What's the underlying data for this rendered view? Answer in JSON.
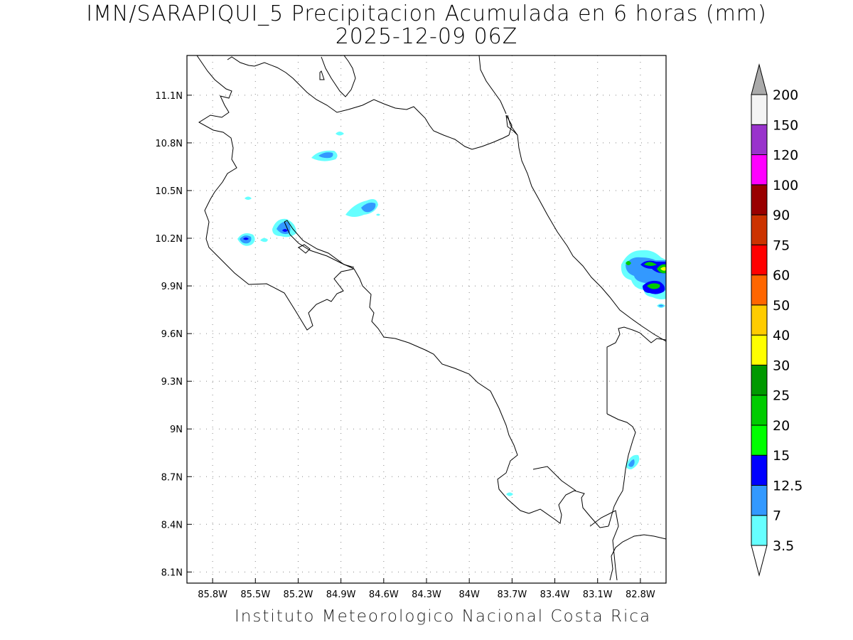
{
  "title": "IMN/SARAPIQUI_5 Precipitacion Acumulada en 6 horas (mm)",
  "subtitle": "2025-12-09 06Z",
  "footer": "Instituto Meteorologico Nacional Costa Rica",
  "map": {
    "lon_range": [
      -85.98,
      -82.62
    ],
    "lat_range": [
      8.03,
      11.35
    ],
    "lon_ticks": [
      "85.8W",
      "85.5W",
      "85.2W",
      "84.9W",
      "84.6W",
      "84.3W",
      "84W",
      "83.7W",
      "83.4W",
      "83.1W",
      "82.8W"
    ],
    "lat_ticks": [
      "11.1N",
      "10.8N",
      "10.5N",
      "10.2N",
      "9.9N",
      "9.6N",
      "9.3N",
      "9N",
      "8.7N",
      "8.4N",
      "8.1N"
    ],
    "grid": "dotted"
  },
  "colorbar": {
    "labels": [
      "3.5",
      "7",
      "12.5",
      "15",
      "20",
      "25",
      "30",
      "40",
      "50",
      "60",
      "75",
      "90",
      "100",
      "120",
      "150",
      "200"
    ],
    "colors": [
      "#66ffff",
      "#3399ff",
      "#0000ff",
      "#00ff00",
      "#00cc00",
      "#009900",
      "#ffff00",
      "#ffcc00",
      "#ff6600",
      "#ff0000",
      "#cc3300",
      "#990000",
      "#ff00ff",
      "#9933cc",
      "#f4f4f4"
    ],
    "top_arrow_color": "#aaaaaa",
    "bottom_arrow_color": "#ffffff"
  }
}
